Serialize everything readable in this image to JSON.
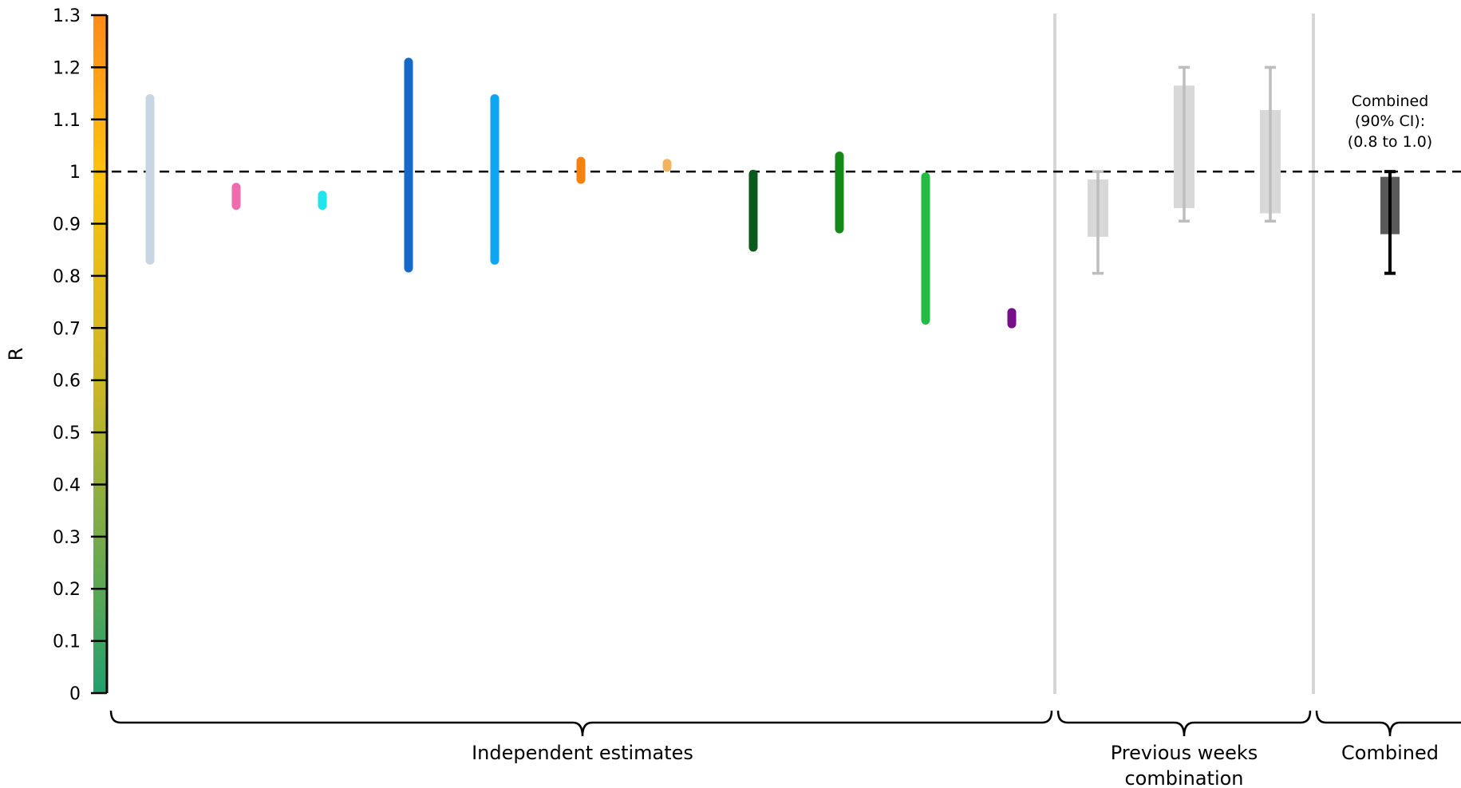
{
  "chart_data": {
    "type": "interval",
    "ylabel": "R",
    "ylim": [
      0,
      1.3
    ],
    "yticks": [
      "0",
      "0.1",
      "0.2",
      "0.3",
      "0.4",
      "0.5",
      "0.6",
      "0.7",
      "0.8",
      "0.9",
      "1",
      "1.1",
      "1.2",
      "1.3"
    ],
    "reference_line": 1,
    "colorbar": {
      "stops": [
        "#22a06e",
        "#c9b627",
        "#ffc20e",
        "#ff8a1a"
      ]
    },
    "independent_estimates": [
      {
        "low": 0.83,
        "high": 1.14,
        "color": "#c8d6e3"
      },
      {
        "low": 0.935,
        "high": 0.97,
        "color": "#f06aae"
      },
      {
        "low": 0.935,
        "high": 0.955,
        "color": "#1ee6ec"
      },
      {
        "low": 0.815,
        "high": 1.21,
        "color": "#1569c8"
      },
      {
        "low": 0.83,
        "high": 1.14,
        "color": "#0ea5f2"
      },
      {
        "low": 0.985,
        "high": 1.02,
        "color": "#f5810f"
      },
      {
        "low": 1.008,
        "high": 1.016,
        "color": "#f2b460"
      },
      {
        "low": 0.855,
        "high": 0.995,
        "color": "#0a5a1c"
      },
      {
        "low": 0.89,
        "high": 1.03,
        "color": "#138a18"
      },
      {
        "low": 0.715,
        "high": 0.99,
        "color": "#22bb44"
      },
      {
        "low": 0.708,
        "high": 0.73,
        "color": "#770e8a"
      }
    ],
    "previous_weeks": [
      {
        "low": 0.805,
        "high": 1.0,
        "q1": 0.875,
        "q3": 0.985,
        "color": "#bdbdbd"
      },
      {
        "low": 0.905,
        "high": 1.2,
        "q1": 0.93,
        "q3": 1.165,
        "color": "#bdbdbd"
      },
      {
        "low": 0.905,
        "high": 1.2,
        "q1": 0.92,
        "q3": 1.118,
        "color": "#bdbdbd"
      }
    ],
    "combined": {
      "low": 0.805,
      "high": 1.0,
      "q1": 0.88,
      "q3": 0.99,
      "color": "#444444"
    },
    "annotation": [
      "Combined",
      "(90% CI):",
      "(0.8 to 1.0)"
    ],
    "groups": [
      {
        "lines": [
          "Independent estimates"
        ]
      },
      {
        "lines": [
          "Previous weeks",
          "combination"
        ]
      },
      {
        "lines": [
          "Combined"
        ]
      }
    ]
  }
}
